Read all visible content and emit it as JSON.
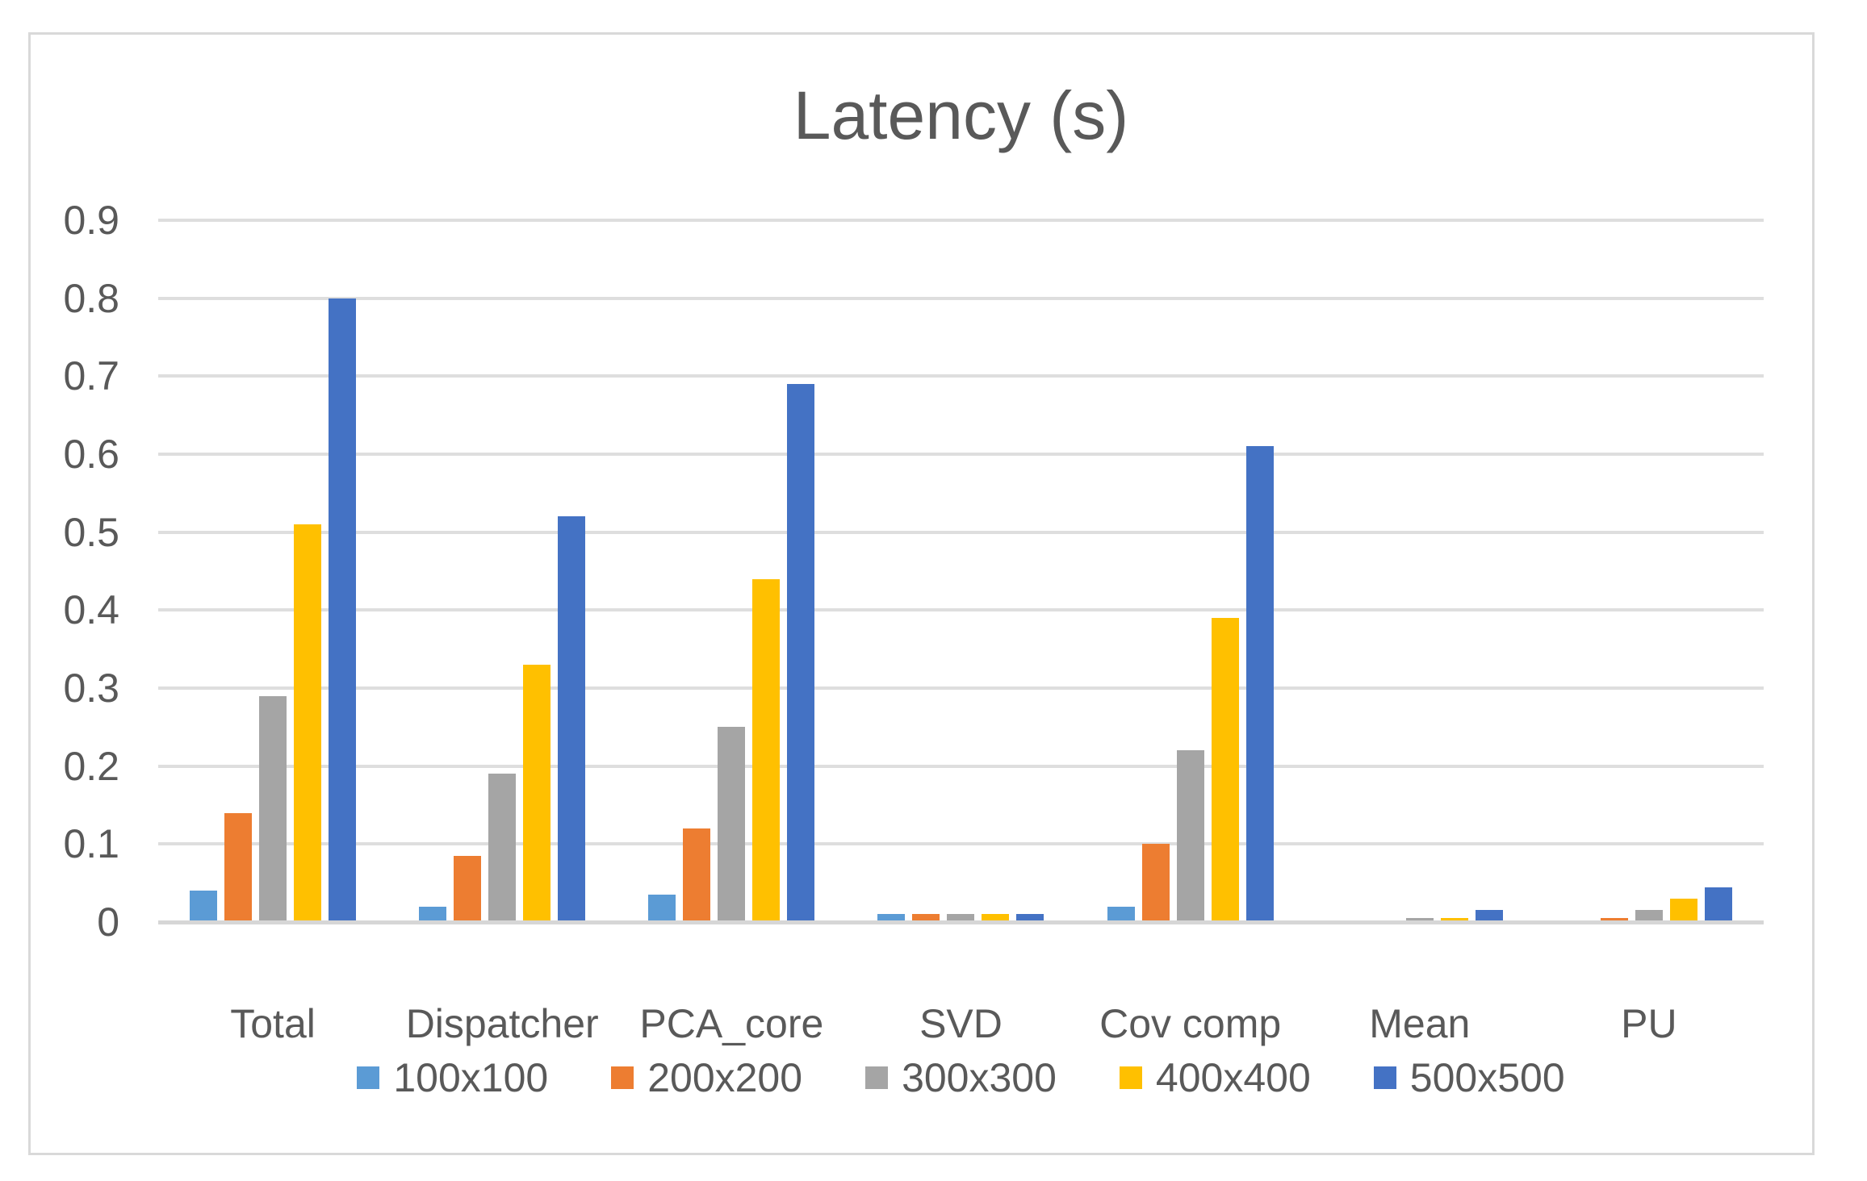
{
  "window": {
    "background_color": "#ffffff",
    "frame_border_color": "#d9d9d9"
  },
  "chart_data": {
    "type": "bar",
    "title": "Latency (s)",
    "xlabel": "",
    "ylabel": "",
    "categories": [
      "Total",
      "Dispatcher",
      "PCA_core",
      "SVD",
      "Cov comp",
      "Mean",
      "PU"
    ],
    "series": [
      {
        "name": "100x100",
        "color": "#5B9BD5",
        "values": [
          0.04,
          0.02,
          0.035,
          0.01,
          0.02,
          0,
          0
        ]
      },
      {
        "name": "200x200",
        "color": "#ED7D31",
        "values": [
          0.14,
          0.085,
          0.12,
          0.01,
          0.1,
          0,
          0.005
        ]
      },
      {
        "name": "300x300",
        "color": "#A5A5A5",
        "values": [
          0.29,
          0.19,
          0.25,
          0.01,
          0.22,
          0.005,
          0.015
        ]
      },
      {
        "name": "400x400",
        "color": "#FFC000",
        "values": [
          0.51,
          0.33,
          0.44,
          0.01,
          0.39,
          0.005,
          0.03
        ]
      },
      {
        "name": "500x500",
        "color": "#4472C4",
        "values": [
          0.8,
          0.52,
          0.69,
          0.01,
          0.61,
          0.015,
          0.045
        ]
      }
    ],
    "y_ticks": [
      "0.9",
      "0.8",
      "0.7",
      "0.6",
      "0.5",
      "0.4",
      "0.3",
      "0.2",
      "0.1",
      "0"
    ],
    "ylim": [
      0,
      0.9
    ],
    "grid": true,
    "legend_position": "bottom",
    "text_color": "#595959",
    "gridline_color": "#dedede"
  }
}
